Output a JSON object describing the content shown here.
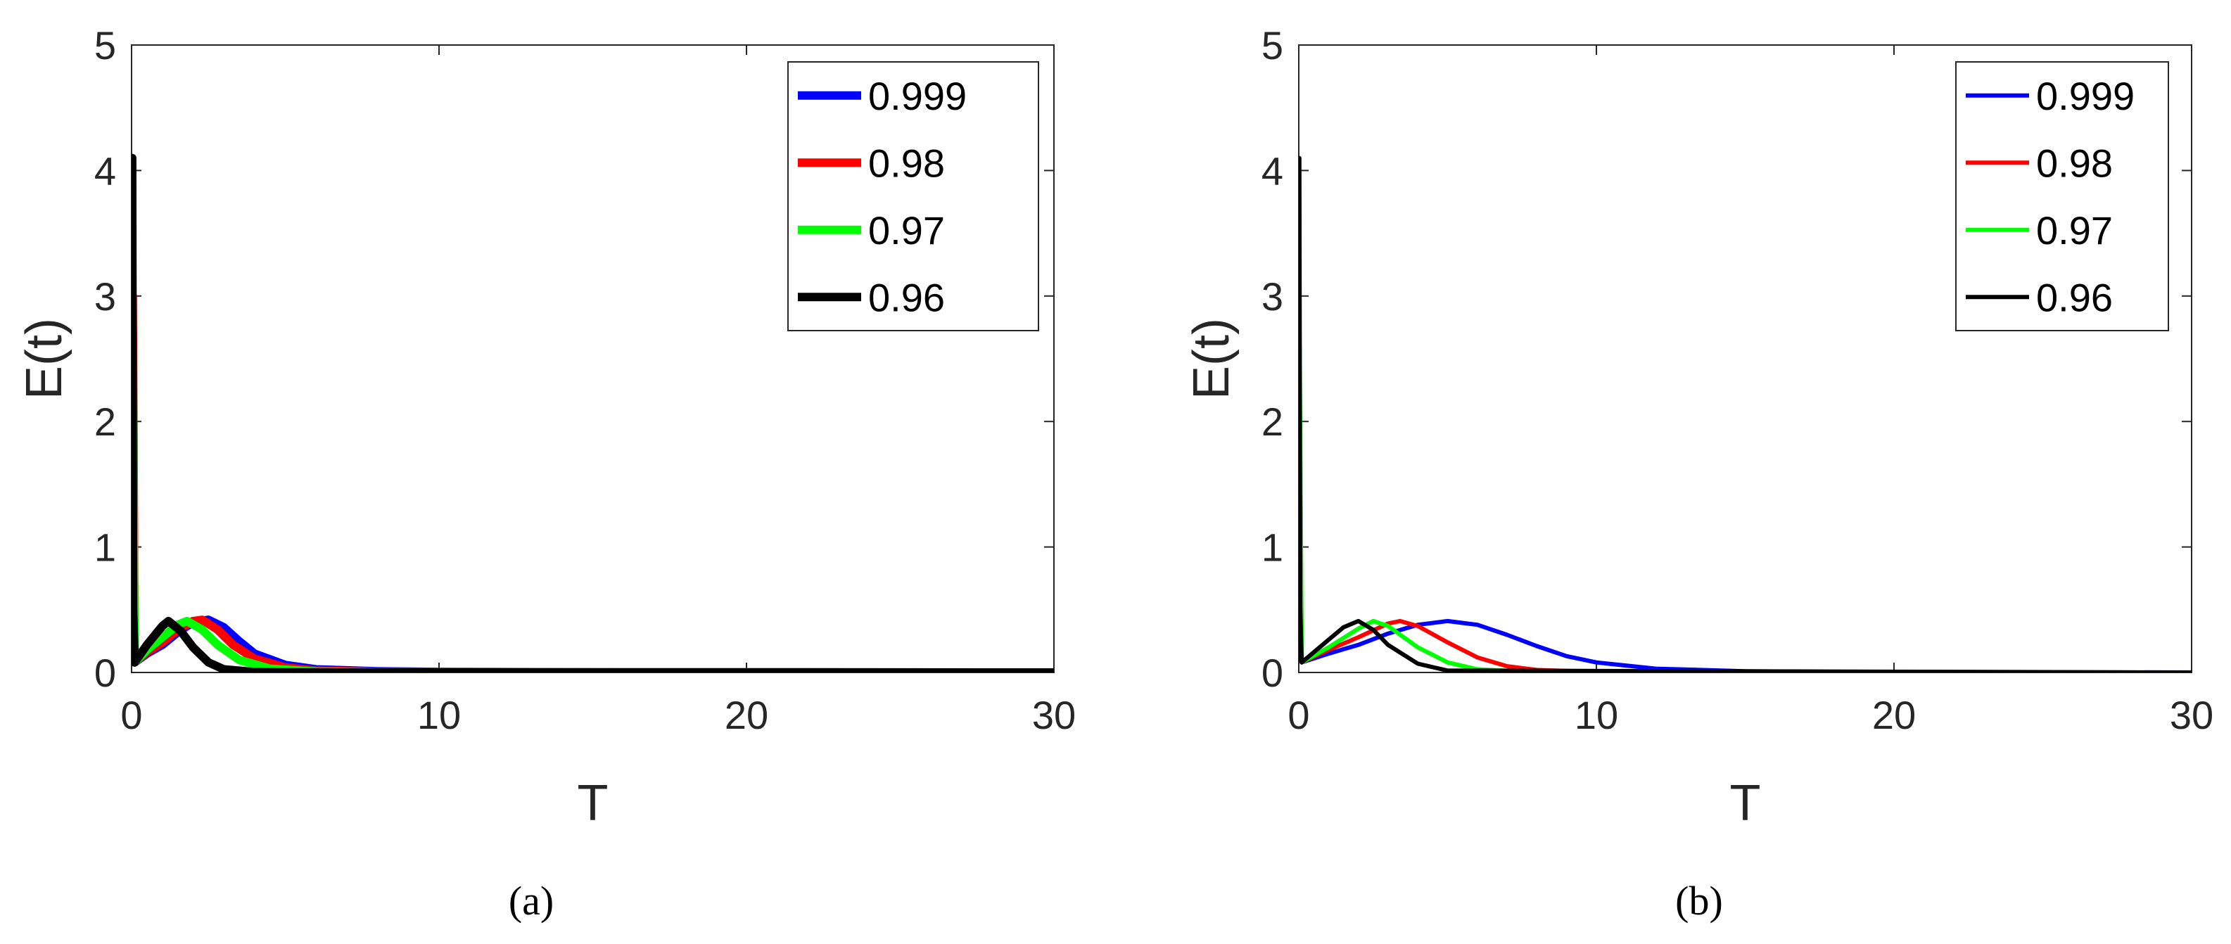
{
  "captions": [
    "(a)",
    "(b)"
  ],
  "chart_data": [
    {
      "type": "line",
      "xlabel": "T",
      "ylabel": "E(t)",
      "xlim": [
        0,
        30
      ],
      "ylim": [
        0,
        5
      ],
      "xticks": [
        0,
        10,
        20,
        30
      ],
      "yticks": [
        0,
        1,
        2,
        3,
        4,
        5
      ],
      "legend_position": "top-right",
      "grid": false,
      "series": [
        {
          "name": "0.999",
          "color": "#0000ff",
          "x": [
            0,
            0.05,
            0.1,
            0.5,
            1.0,
            1.5,
            2.0,
            2.5,
            3.0,
            3.5,
            4.0,
            5.0,
            6.0,
            8.0,
            10.0,
            15.0,
            30.0
          ],
          "y": [
            0.1,
            1.3,
            0.08,
            0.15,
            0.22,
            0.32,
            0.4,
            0.42,
            0.36,
            0.25,
            0.15,
            0.06,
            0.025,
            0.01,
            0.005,
            0.001,
            0.0
          ]
        },
        {
          "name": "0.98",
          "color": "#ff0000",
          "x": [
            0,
            0.04,
            0.1,
            0.5,
            1.0,
            1.5,
            2.0,
            2.3,
            2.8,
            3.3,
            4.0,
            5.0,
            6.0,
            8.0,
            10.0,
            30.0
          ],
          "y": [
            0.1,
            3.0,
            0.08,
            0.16,
            0.24,
            0.34,
            0.41,
            0.42,
            0.34,
            0.22,
            0.11,
            0.04,
            0.015,
            0.004,
            0.001,
            0.0
          ]
        },
        {
          "name": "0.97",
          "color": "#00ff00",
          "x": [
            0,
            0.03,
            0.1,
            0.5,
            1.0,
            1.5,
            1.8,
            2.3,
            2.8,
            3.5,
            4.5,
            6.0,
            8.0,
            30.0
          ],
          "y": [
            0.1,
            2.4,
            0.08,
            0.18,
            0.28,
            0.38,
            0.41,
            0.34,
            0.22,
            0.1,
            0.03,
            0.008,
            0.002,
            0.0
          ]
        },
        {
          "name": "0.96",
          "color": "#000000",
          "x": [
            0,
            0.02,
            0.05,
            0.1,
            0.5,
            1.0,
            1.2,
            1.6,
            2.0,
            2.5,
            3.0,
            4.0,
            5.0,
            30.0
          ],
          "y": [
            0.1,
            4.1,
            0.5,
            0.08,
            0.22,
            0.37,
            0.41,
            0.33,
            0.2,
            0.08,
            0.025,
            0.004,
            0.001,
            0.0
          ]
        }
      ]
    },
    {
      "type": "line",
      "xlabel": "T",
      "ylabel": "E(t)",
      "xlim": [
        0,
        30
      ],
      "ylim": [
        0,
        5
      ],
      "xticks": [
        0,
        10,
        20,
        30
      ],
      "yticks": [
        0,
        1,
        2,
        3,
        4,
        5
      ],
      "legend_position": "top-right",
      "grid": false,
      "series": [
        {
          "name": "0.999",
          "color": "#0000ff",
          "x": [
            0,
            0.05,
            0.1,
            1.0,
            2.0,
            3.0,
            4.0,
            5.0,
            6.0,
            7.0,
            8.0,
            9.0,
            10.0,
            12.0,
            15.0,
            20.0,
            30.0
          ],
          "y": [
            0.1,
            1.0,
            0.08,
            0.15,
            0.22,
            0.31,
            0.38,
            0.41,
            0.38,
            0.3,
            0.21,
            0.13,
            0.08,
            0.03,
            0.01,
            0.002,
            0.0
          ]
        },
        {
          "name": "0.98",
          "color": "#ff0000",
          "x": [
            0,
            0.04,
            0.1,
            1.0,
            2.0,
            3.0,
            3.4,
            4.0,
            5.0,
            6.0,
            7.0,
            8.0,
            10.0,
            30.0
          ],
          "y": [
            0.1,
            2.0,
            0.08,
            0.18,
            0.28,
            0.39,
            0.41,
            0.37,
            0.24,
            0.12,
            0.05,
            0.02,
            0.004,
            0.0
          ]
        },
        {
          "name": "0.97",
          "color": "#00ff00",
          "x": [
            0,
            0.03,
            0.1,
            1.0,
            2.0,
            2.5,
            3.0,
            4.0,
            5.0,
            6.0,
            8.0,
            30.0
          ],
          "y": [
            0.1,
            2.6,
            0.08,
            0.2,
            0.35,
            0.41,
            0.37,
            0.2,
            0.08,
            0.025,
            0.003,
            0.0
          ]
        },
        {
          "name": "0.96",
          "color": "#000000",
          "x": [
            0,
            0.02,
            0.05,
            0.1,
            1.0,
            1.5,
            2.0,
            2.5,
            3.0,
            4.0,
            5.0,
            30.0
          ],
          "y": [
            0.1,
            4.1,
            0.5,
            0.08,
            0.26,
            0.36,
            0.41,
            0.34,
            0.22,
            0.07,
            0.015,
            0.0
          ]
        }
      ]
    }
  ]
}
